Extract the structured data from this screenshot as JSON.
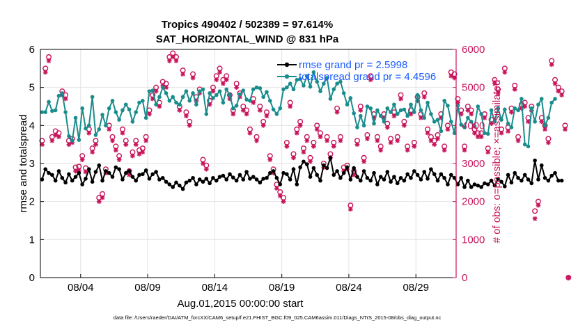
{
  "chart_data": {
    "type": "line",
    "title": "Tropics 490402 / 502389 = 97.614%",
    "subtitle": "SAT_HORIZONTAL_WIND @ 831 hPa",
    "xlabel": "Aug.01,2015 00:00:00 start",
    "ylabel": "rmse and totalspread",
    "ylabel_right": "# of obs: o=possible; ×=assimilated",
    "footer": "data file: /Users/raeder/DAI/ATM_forcXX/CAM6_setup/f.e21.FHIST_BGC.f09_025.CAM6assim.011/Diags_NTrS_2015-08/obs_diag_output.nc",
    "x_range": [
      1,
      32
    ],
    "x_ticks": [
      {
        "value": 4,
        "label": "08/04"
      },
      {
        "value": 9,
        "label": "08/09"
      },
      {
        "value": 14,
        "label": "08/14"
      },
      {
        "value": 19,
        "label": "08/19"
      },
      {
        "value": 24,
        "label": "08/24"
      },
      {
        "value": 29,
        "label": "08/29"
      }
    ],
    "ylim": [
      0,
      6
    ],
    "y_ticks": [
      0,
      1,
      2,
      3,
      4,
      5,
      6
    ],
    "ylim_right": [
      0,
      6000
    ],
    "y_ticks_right": [
      0,
      1000,
      2000,
      3000,
      4000,
      5000,
      6000
    ],
    "legend": [
      {
        "name": "rmse",
        "label": "rmse grand pr = 2.5998",
        "color": "#000000"
      },
      {
        "name": "totalspread",
        "label": "totalspread grand pr = 4.4596",
        "color": "#1a8c8c"
      }
    ],
    "x_step": 0.25,
    "series": [
      {
        "name": "rmse",
        "color": "#000000",
        "values": [
          2.58,
          2.85,
          2.75,
          2.7,
          2.55,
          2.8,
          2.62,
          2.5,
          2.72,
          2.55,
          2.65,
          2.75,
          2.45,
          2.6,
          2.85,
          2.52,
          2.78,
          2.95,
          2.55,
          2.8,
          2.75,
          2.65,
          2.9,
          2.85,
          2.58,
          2.75,
          2.8,
          2.65,
          2.55,
          2.7,
          2.72,
          2.82,
          2.6,
          2.72,
          2.78,
          2.58,
          2.62,
          2.52,
          2.45,
          2.38,
          2.5,
          2.42,
          2.33,
          2.5,
          2.55,
          2.62,
          2.45,
          2.58,
          2.52,
          2.6,
          2.48,
          2.62,
          2.55,
          2.65,
          2.68,
          2.58,
          2.72,
          2.63,
          2.55,
          2.7,
          2.58,
          2.78,
          2.6,
          2.65,
          2.58,
          2.5,
          2.6,
          2.62,
          2.75,
          2.8,
          2.62,
          2.45,
          2.75,
          2.72,
          2.58,
          2.85,
          2.45,
          2.9,
          3.05,
          2.98,
          2.65,
          2.88,
          2.7,
          2.55,
          2.95,
          2.88,
          3.15,
          2.7,
          2.8,
          2.62,
          2.75,
          2.9,
          2.58,
          2.88,
          2.65,
          2.55,
          2.8,
          2.62,
          2.55,
          2.75,
          2.45,
          2.65,
          2.58,
          2.78,
          2.52,
          2.65,
          2.48,
          2.62,
          2.55,
          2.72,
          2.62,
          2.8,
          2.7,
          2.58,
          2.78,
          2.6,
          2.85,
          2.72,
          2.55,
          2.72,
          2.62,
          2.45,
          2.7,
          2.62,
          2.45,
          2.62,
          2.38,
          2.55,
          2.38,
          2.45,
          2.42,
          2.38,
          2.48,
          2.45,
          2.55,
          2.42,
          2.6,
          2.52,
          2.4,
          2.7,
          2.5,
          2.75,
          2.62,
          2.55,
          2.7,
          2.58,
          2.48,
          3.08,
          2.58,
          2.95,
          2.62,
          2.55,
          2.68,
          2.75,
          2.55,
          2.55
        ]
      },
      {
        "name": "totalspread",
        "color": "#1a8c8c",
        "values": [
          4.35,
          4.35,
          4.62,
          4.38,
          4.4,
          4.78,
          4.85,
          4.35,
          3.72,
          3.6,
          4.2,
          3.62,
          4.45,
          3.92,
          4.0,
          4.75,
          3.75,
          3.9,
          4.28,
          4.0,
          4.45,
          4.65,
          4.35,
          4.15,
          4.4,
          4.55,
          4.42,
          4.1,
          4.35,
          4.6,
          4.65,
          4.2,
          4.9,
          4.92,
          4.55,
          4.75,
          5.0,
          4.85,
          4.65,
          4.75,
          4.6,
          4.55,
          4.75,
          4.9,
          4.65,
          4.85,
          4.55,
          4.9,
          4.95,
          4.3,
          4.85,
          4.72,
          4.8,
          4.9,
          4.6,
          4.95,
          4.8,
          4.45,
          4.52,
          4.82,
          4.92,
          4.68,
          4.65,
          4.95,
          5.0,
          4.98,
          4.75,
          4.88,
          4.65,
          4.42,
          4.3,
          4.45,
          4.95,
          5.0,
          5.1,
          4.95,
          5.2,
          5.22,
          5.05,
          5.3,
          5.02,
          5.4,
          5.15,
          4.9,
          5.1,
          5.25,
          4.7,
          4.95,
          5.1,
          5.15,
          4.85,
          4.55,
          4.72,
          4.32,
          3.95,
          4.25,
          4.0,
          4.5,
          4.45,
          4.05,
          4.4,
          4.25,
          4.1,
          4.45,
          4.35,
          4.55,
          4.3,
          4.4,
          4.42,
          4.25,
          4.55,
          4.35,
          4.8,
          4.4,
          4.2,
          4.6,
          4.3,
          4.1,
          4.15,
          3.85,
          4.65,
          4.52,
          4.1,
          3.8,
          4.52,
          4.02,
          3.95,
          4.2,
          4.1,
          3.98,
          4.5,
          4.3,
          3.8,
          3.78,
          4.4,
          4.1,
          4.45,
          4.15,
          4.42,
          4.05,
          3.95,
          4.45,
          4.4,
          4.7,
          3.5,
          3.45,
          4.45,
          4.1,
          4.55,
          4.7,
          4.0,
          4.2,
          4.6,
          4.7
        ]
      },
      {
        "name": "obs_possible",
        "color": "#c7145a",
        "marker": "o",
        "values": [
          3600,
          5500,
          5800,
          3700,
          3850,
          3800,
          4900,
          4800,
          3600,
          3650,
          2900,
          2920,
          3200,
          2880,
          3900,
          3400,
          3600,
          2100,
          2200,
          2850,
          4000,
          3700,
          3450,
          3200,
          3900,
          3600,
          2800,
          3300,
          3600,
          3350,
          3400,
          3700,
          4400,
          4800,
          5000,
          4600,
          5150,
          5100,
          5800,
          5900,
          5800,
          4500,
          5450,
          4350,
          4100,
          5350,
          4750,
          4950,
          3100,
          2950,
          4650,
          5000,
          5300,
          5500,
          5200,
          5300,
          4800,
          4400,
          5100,
          4850,
          4500,
          4400,
          3900,
          4700,
          3700,
          4500,
          4100,
          4350,
          3200,
          2850,
          2450,
          2250,
          2100,
          3550,
          4600,
          3250,
          3900,
          4100,
          3400,
          3700,
          3150,
          3550,
          4000,
          3800,
          3000,
          3700,
          3250,
          3550,
          4450,
          3700,
          2900,
          2950,
          1900,
          2800,
          3600,
          4500,
          3150,
          3750,
          5300,
          4300,
          3700,
          3450,
          4300,
          4050,
          3650,
          4350,
          3700,
          4800,
          4100,
          3450,
          4400,
          3550,
          4750,
          4300,
          4850,
          3900,
          3700,
          3600,
          3750,
          4300,
          3450,
          4000,
          5400,
          5350,
          4700,
          4400,
          3450,
          4500,
          4400,
          3900,
          3800,
          3800,
          4300,
          3400,
          4150,
          5200,
          4950,
          3900,
          5500,
          3950,
          4450,
          5050,
          3700,
          4550,
          4600,
          4200,
          4500,
          1750,
          2000,
          4200,
          4000,
          3650,
          5700,
          5200,
          5000,
          4900,
          4000,
          0
        ]
      },
      {
        "name": "obs_assimilated",
        "color": "#c7145a",
        "marker": "x",
        "values": [
          3500,
          5400,
          5700,
          3600,
          3750,
          3700,
          4800,
          4700,
          3500,
          3550,
          2800,
          2820,
          3100,
          2780,
          3800,
          3300,
          3500,
          2000,
          2100,
          2750,
          3900,
          3600,
          3350,
          3100,
          3800,
          3500,
          2700,
          3200,
          3500,
          3250,
          3300,
          3600,
          4300,
          4700,
          4900,
          4500,
          5050,
          5000,
          5700,
          5800,
          5700,
          4400,
          5350,
          4250,
          4000,
          5250,
          4650,
          4850,
          3000,
          2850,
          4550,
          4900,
          5200,
          5400,
          5100,
          5200,
          4700,
          4300,
          5000,
          4750,
          4400,
          4300,
          3800,
          4600,
          3600,
          4400,
          4000,
          4250,
          3100,
          2750,
          2350,
          2150,
          2000,
          3450,
          4500,
          3150,
          3800,
          4000,
          3300,
          3600,
          3050,
          3450,
          3900,
          3700,
          2900,
          3600,
          3150,
          3450,
          4350,
          3600,
          2800,
          2850,
          1800,
          2700,
          3500,
          4400,
          3050,
          3650,
          5200,
          4200,
          3600,
          3350,
          4200,
          3950,
          3550,
          4250,
          3600,
          4700,
          4000,
          3350,
          4300,
          3450,
          4650,
          4200,
          4750,
          3800,
          3600,
          3500,
          3650,
          4200,
          3350,
          3900,
          5300,
          5250,
          4600,
          4300,
          3350,
          4400,
          4300,
          3800,
          3700,
          3700,
          4200,
          3300,
          4050,
          5100,
          4850,
          3800,
          5400,
          3850,
          4350,
          4950,
          3600,
          4450,
          4500,
          4100,
          4400,
          1550,
          1900,
          4100,
          3900,
          3550,
          5600,
          5100,
          4900,
          4800,
          3900,
          0
        ]
      }
    ]
  }
}
